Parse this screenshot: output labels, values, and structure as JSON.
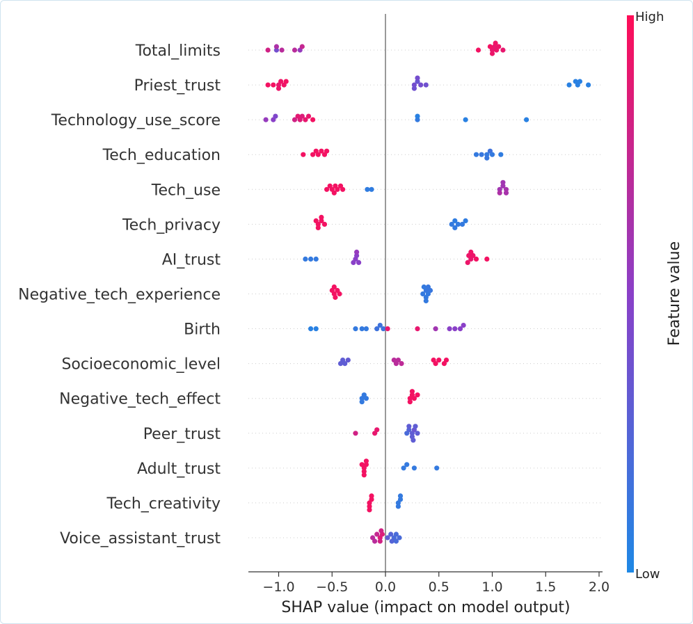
{
  "chart_data": {
    "type": "scatter",
    "subtype": "shap-beeswarm",
    "xlabel": "SHAP value (impact on model output)",
    "xlim": [
      -1.3,
      2.05
    ],
    "xticks": [
      -1.0,
      -0.5,
      0.0,
      0.5,
      1.0,
      1.5,
      2.0
    ],
    "xtick_labels": [
      "−1.0",
      "−0.5",
      "0.0",
      "0.5",
      "1.0",
      "1.5",
      "2.0"
    ],
    "colorbar": {
      "high_label": "High",
      "low_label": "Low",
      "title": "Feature value",
      "high_color": "#ff0d57",
      "low_color": "#1e88e5"
    },
    "features": [
      {
        "name": "Total_limits",
        "points": [
          [
            -1.02,
            0.4
          ],
          [
            -0.97,
            0.7
          ],
          [
            -1.1,
            0.8
          ],
          [
            -1.02,
            0.65
          ],
          [
            -0.8,
            0.55
          ],
          [
            -0.85,
            0.7
          ],
          [
            -0.78,
            0.75
          ],
          [
            1.0,
            0.9
          ],
          [
            1.04,
            0.92
          ],
          [
            1.02,
            0.9
          ],
          [
            0.98,
            0.95
          ],
          [
            1.06,
            0.92
          ],
          [
            1.1,
            0.9
          ],
          [
            0.87,
            0.95
          ],
          [
            1.0,
            0.92
          ],
          [
            1.03,
            0.93
          ]
        ]
      },
      {
        "name": "Priest_trust",
        "points": [
          [
            -1.0,
            0.9
          ],
          [
            -1.05,
            0.95
          ],
          [
            -0.98,
            0.93
          ],
          [
            -1.1,
            0.95
          ],
          [
            -0.95,
            0.93
          ],
          [
            -1.0,
            0.92
          ],
          [
            -0.93,
            0.95
          ],
          [
            0.27,
            0.4
          ],
          [
            0.3,
            0.35
          ],
          [
            0.33,
            0.4
          ],
          [
            0.38,
            0.38
          ],
          [
            0.27,
            0.38
          ],
          [
            0.3,
            0.4
          ],
          [
            1.72,
            0.05
          ],
          [
            1.8,
            0.05
          ],
          [
            1.82,
            0.05
          ],
          [
            1.9,
            0.05
          ],
          [
            1.78,
            0.05
          ]
        ]
      },
      {
        "name": "Technology_use_score",
        "points": [
          [
            -1.05,
            0.5
          ],
          [
            -1.12,
            0.55
          ],
          [
            -1.03,
            0.45
          ],
          [
            -0.85,
            0.8
          ],
          [
            -0.8,
            0.85
          ],
          [
            -0.78,
            0.85
          ],
          [
            -0.75,
            0.9
          ],
          [
            -0.72,
            0.9
          ],
          [
            -0.68,
            0.95
          ],
          [
            -0.82,
            0.88
          ],
          [
            0.3,
            0.1
          ],
          [
            0.3,
            0.05
          ],
          [
            0.75,
            0.05
          ],
          [
            1.32,
            0.05
          ]
        ]
      },
      {
        "name": "Tech_education",
        "points": [
          [
            -0.63,
            0.95
          ],
          [
            -0.6,
            0.95
          ],
          [
            -0.57,
            0.95
          ],
          [
            -0.65,
            0.95
          ],
          [
            -0.68,
            0.95
          ],
          [
            -0.55,
            0.95
          ],
          [
            -0.77,
            0.95
          ],
          [
            0.85,
            0.1
          ],
          [
            0.9,
            0.12
          ],
          [
            0.95,
            0.1
          ],
          [
            0.98,
            0.15
          ],
          [
            1.0,
            0.1
          ],
          [
            1.08,
            0.08
          ],
          [
            0.95,
            0.12
          ]
        ]
      },
      {
        "name": "Tech_use",
        "points": [
          [
            -0.5,
            0.95
          ],
          [
            -0.47,
            0.95
          ],
          [
            -0.45,
            0.95
          ],
          [
            -0.4,
            0.95
          ],
          [
            -0.55,
            0.95
          ],
          [
            -0.52,
            0.95
          ],
          [
            -0.48,
            0.95
          ],
          [
            -0.42,
            0.95
          ],
          [
            -0.17,
            0.08
          ],
          [
            -0.13,
            0.08
          ],
          [
            1.07,
            0.6
          ],
          [
            1.1,
            0.6
          ],
          [
            1.13,
            0.62
          ],
          [
            1.07,
            0.65
          ],
          [
            1.1,
            0.6
          ],
          [
            1.13,
            0.63
          ]
        ]
      },
      {
        "name": "Tech_privacy",
        "points": [
          [
            -0.63,
            0.95
          ],
          [
            -0.6,
            0.95
          ],
          [
            -0.57,
            0.95
          ],
          [
            -0.65,
            0.95
          ],
          [
            -0.63,
            0.95
          ],
          [
            -0.6,
            0.95
          ],
          [
            0.62,
            0.1
          ],
          [
            0.65,
            0.08
          ],
          [
            0.68,
            0.1
          ],
          [
            0.72,
            0.1
          ],
          [
            0.75,
            0.08
          ],
          [
            0.65,
            0.1
          ]
        ]
      },
      {
        "name": "AI_trust",
        "points": [
          [
            -0.75,
            0.1
          ],
          [
            -0.7,
            0.1
          ],
          [
            -0.65,
            0.1
          ],
          [
            -0.28,
            0.5
          ],
          [
            -0.27,
            0.5
          ],
          [
            -0.25,
            0.5
          ],
          [
            -0.3,
            0.5
          ],
          [
            -0.27,
            0.55
          ],
          [
            0.8,
            0.9
          ],
          [
            0.78,
            0.92
          ],
          [
            0.82,
            0.92
          ],
          [
            0.85,
            0.95
          ],
          [
            0.95,
            0.95
          ],
          [
            0.77,
            0.92
          ],
          [
            0.8,
            0.93
          ]
        ]
      },
      {
        "name": "Negative_tech_experience",
        "points": [
          [
            -0.48,
            0.95
          ],
          [
            -0.45,
            0.95
          ],
          [
            -0.5,
            0.95
          ],
          [
            -0.47,
            0.95
          ],
          [
            -0.43,
            0.95
          ],
          [
            -0.48,
            0.95
          ],
          [
            0.35,
            0.1
          ],
          [
            0.38,
            0.12
          ],
          [
            0.4,
            0.1
          ],
          [
            0.42,
            0.12
          ],
          [
            0.38,
            0.1
          ],
          [
            0.36,
            0.1
          ],
          [
            0.4,
            0.12
          ],
          [
            0.38,
            0.1
          ]
        ]
      },
      {
        "name": "Birth",
        "points": [
          [
            -0.7,
            0.05
          ],
          [
            -0.65,
            0.05
          ],
          [
            -0.28,
            0.1
          ],
          [
            -0.22,
            0.1
          ],
          [
            -0.18,
            0.1
          ],
          [
            -0.08,
            0.15
          ],
          [
            -0.05,
            0.15
          ],
          [
            -0.02,
            0.15
          ],
          [
            0.02,
            0.9
          ],
          [
            0.3,
            0.9
          ],
          [
            0.47,
            0.6
          ],
          [
            0.6,
            0.5
          ],
          [
            0.65,
            0.5
          ],
          [
            0.7,
            0.5
          ],
          [
            0.73,
            0.5
          ]
        ]
      },
      {
        "name": "Socioeconomic_level",
        "points": [
          [
            -0.42,
            0.3
          ],
          [
            -0.38,
            0.3
          ],
          [
            -0.35,
            0.32
          ],
          [
            -0.4,
            0.3
          ],
          [
            0.1,
            0.7
          ],
          [
            0.12,
            0.7
          ],
          [
            0.15,
            0.72
          ],
          [
            0.08,
            0.7
          ],
          [
            0.47,
            0.95
          ],
          [
            0.5,
            0.95
          ],
          [
            0.55,
            0.95
          ],
          [
            0.57,
            0.95
          ],
          [
            0.45,
            0.95
          ]
        ]
      },
      {
        "name": "Negative_tech_effect",
        "points": [
          [
            -0.22,
            0.1
          ],
          [
            -0.2,
            0.1
          ],
          [
            -0.18,
            0.1
          ],
          [
            -0.22,
            0.1
          ],
          [
            0.23,
            0.95
          ],
          [
            0.25,
            0.95
          ],
          [
            0.27,
            0.95
          ],
          [
            0.3,
            0.95
          ],
          [
            0.23,
            0.95
          ],
          [
            0.25,
            0.95
          ]
        ]
      },
      {
        "name": "Peer_trust",
        "points": [
          [
            -0.28,
            0.8
          ],
          [
            -0.1,
            0.9
          ],
          [
            -0.08,
            0.9
          ],
          [
            0.2,
            0.2
          ],
          [
            0.22,
            0.25
          ],
          [
            0.25,
            0.3
          ],
          [
            0.27,
            0.35
          ],
          [
            0.3,
            0.3
          ],
          [
            0.25,
            0.3
          ],
          [
            0.28,
            0.3
          ],
          [
            0.22,
            0.3
          ],
          [
            0.26,
            0.3
          ]
        ]
      },
      {
        "name": "Adult_trust",
        "points": [
          [
            -0.2,
            0.95
          ],
          [
            -0.18,
            0.95
          ],
          [
            -0.22,
            0.95
          ],
          [
            -0.2,
            0.95
          ],
          [
            -0.18,
            0.95
          ],
          [
            -0.2,
            0.95
          ],
          [
            0.17,
            0.1
          ],
          [
            0.2,
            0.1
          ],
          [
            0.27,
            0.1
          ],
          [
            0.48,
            0.1
          ]
        ]
      },
      {
        "name": "Tech_creativity",
        "points": [
          [
            -0.15,
            0.95
          ],
          [
            -0.13,
            0.95
          ],
          [
            -0.15,
            0.95
          ],
          [
            -0.13,
            0.95
          ],
          [
            -0.15,
            0.95
          ],
          [
            0.12,
            0.1
          ],
          [
            0.14,
            0.1
          ],
          [
            0.12,
            0.1
          ],
          [
            0.14,
            0.1
          ]
        ]
      },
      {
        "name": "Voice_assistant_trust",
        "points": [
          [
            -0.05,
            0.85
          ],
          [
            -0.12,
            0.7
          ],
          [
            -0.08,
            0.75
          ],
          [
            -0.05,
            0.8
          ],
          [
            -0.03,
            0.85
          ],
          [
            -0.1,
            0.7
          ],
          [
            -0.04,
            0.8
          ],
          [
            0.02,
            0.3
          ],
          [
            0.05,
            0.25
          ],
          [
            0.08,
            0.2
          ],
          [
            0.1,
            0.2
          ],
          [
            0.13,
            0.2
          ],
          [
            0.06,
            0.25
          ],
          [
            0.1,
            0.2
          ]
        ]
      }
    ]
  }
}
